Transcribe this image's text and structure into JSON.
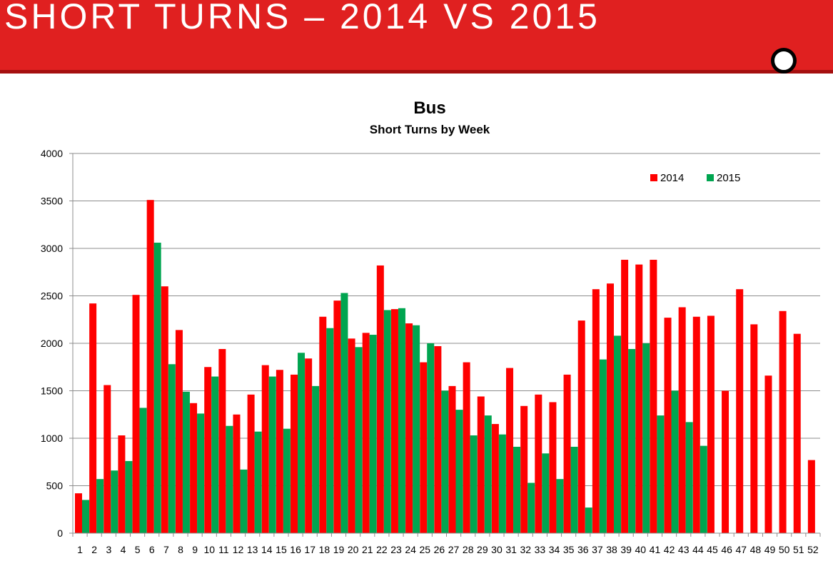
{
  "header": {
    "title": "SHORT TURNS – 2014 VS 2015",
    "colors": {
      "banner": "#e02020",
      "rule": "#a50f0f"
    }
  },
  "chart_data": {
    "type": "bar",
    "title": "Bus",
    "subtitle": "Short Turns by Week",
    "xlabel": "",
    "ylabel": "",
    "ylim": [
      0,
      4000
    ],
    "yticks": [
      0,
      500,
      1000,
      1500,
      2000,
      2500,
      3000,
      3500,
      4000
    ],
    "grid": true,
    "legend_position": "top-right",
    "categories": [
      "1",
      "2",
      "3",
      "4",
      "5",
      "6",
      "7",
      "8",
      "9",
      "10",
      "11",
      "12",
      "13",
      "14",
      "15",
      "16",
      "17",
      "18",
      "19",
      "20",
      "21",
      "22",
      "23",
      "24",
      "25",
      "26",
      "27",
      "28",
      "29",
      "30",
      "31",
      "32",
      "33",
      "34",
      "35",
      "36",
      "37",
      "38",
      "39",
      "40",
      "41",
      "42",
      "43",
      "44",
      "45",
      "46",
      "47",
      "48",
      "49",
      "50",
      "51",
      "52"
    ],
    "series": [
      {
        "name": "2014",
        "color": "#ff0000",
        "values": [
          420,
          2420,
          1560,
          1030,
          2510,
          3510,
          2600,
          2140,
          1370,
          1750,
          1940,
          1250,
          1460,
          1770,
          1720,
          1670,
          1840,
          2280,
          2450,
          2050,
          2110,
          2820,
          2360,
          2210,
          1800,
          1970,
          1550,
          1800,
          1440,
          1150,
          1740,
          1340,
          1460,
          1380,
          1670,
          2240,
          2570,
          2630,
          2880,
          2830,
          2880,
          2270,
          2380,
          2280,
          2290,
          1500,
          2570,
          2200,
          1660,
          2340,
          2100,
          770
        ]
      },
      {
        "name": "2015",
        "color": "#00a550",
        "values": [
          350,
          570,
          660,
          760,
          1320,
          3060,
          1780,
          1490,
          1260,
          1650,
          1130,
          670,
          1070,
          1650,
          1100,
          1900,
          1550,
          2160,
          2530,
          1960,
          2090,
          2350,
          2370,
          2190,
          2000,
          1500,
          1300,
          1030,
          1240,
          1040,
          910,
          530,
          840,
          570,
          910,
          270,
          1830,
          2080,
          1940,
          2000,
          1240,
          1500,
          1170,
          920,
          null,
          null,
          null,
          null,
          null,
          null,
          null,
          null
        ]
      }
    ]
  }
}
